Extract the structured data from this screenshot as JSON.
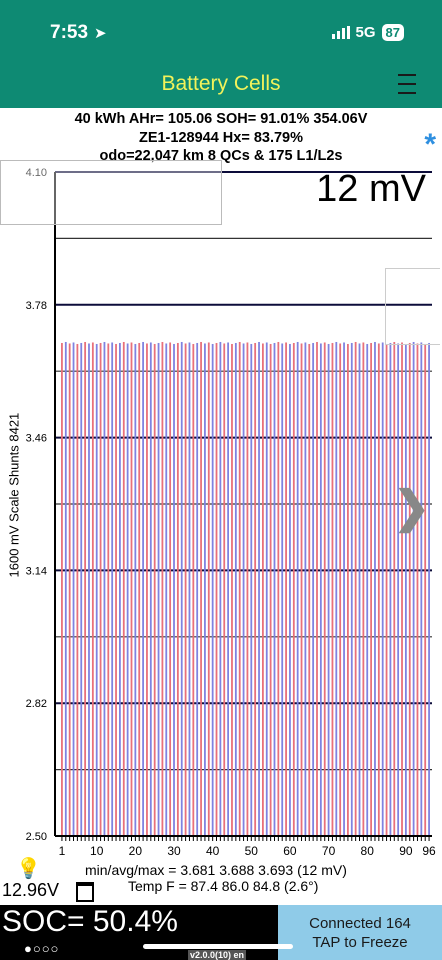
{
  "status_bar": {
    "time": "7:53",
    "network": "5G",
    "battery": "87"
  },
  "app": {
    "title": "Battery Cells"
  },
  "info": {
    "line1": "40 kWh  AHr= 105.06  SOH= 91.01%   354.06V",
    "line2": "ZE1-128944   Hx= 83.79%",
    "line3": "odo=22,047 km 8 QCs & 175 L1/L2s"
  },
  "chart_data": {
    "type": "bar",
    "title": "12 mV",
    "ylabel": "1600 mV Scale   Shunts 8421",
    "ylim": [
      2.5,
      4.1
    ],
    "y_ticks": [
      "4.10",
      "3.78",
      "3.46",
      "3.14",
      "2.82",
      "2.50"
    ],
    "x_ticks": [
      "1",
      "10",
      "20",
      "30",
      "40",
      "50",
      "60",
      "70",
      "80",
      "90",
      "96"
    ],
    "cell_count": 96,
    "series_colors": [
      "#e8707a",
      "#7f82e0"
    ],
    "min_v": 3.681,
    "avg_v": 3.688,
    "max_v": 3.693
  },
  "footer": {
    "stats": "min/avg/max = 3.681  3.688  3.693  (12 mV)",
    "temps": "Temp F = 87.4   86.0   84.8  (2.6°)",
    "voltage": "12.96V",
    "soc": "SOC= 50.4%",
    "dots": "●○○○",
    "connected": "Connected 164",
    "tap": "TAP to Freeze",
    "version": "v2.0.0(10) en"
  }
}
